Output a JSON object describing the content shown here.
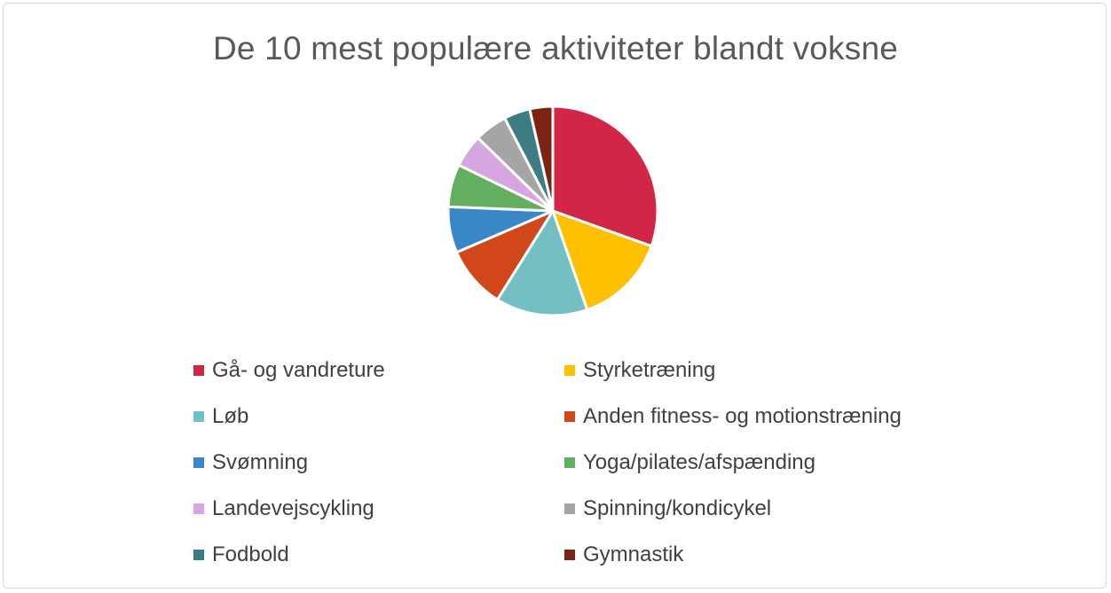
{
  "chart_data": {
    "type": "pie",
    "title": "De 10 mest populære aktiviteter blandt voksne",
    "categories": [
      "Gå- og vandreture",
      "Styrketræning",
      "Løb",
      "Anden fitness- og motionstræning",
      "Svømning",
      "Yoga/pilates/afspænding",
      "Landevejscykling",
      "Spinning/kondicykel",
      "Fodbold",
      "Gymnastik"
    ],
    "values": [
      30,
      14,
      14,
      9.5,
      7,
      6.5,
      5,
      5,
      4,
      3.5
    ],
    "colors": [
      "#d12645",
      "#ffc000",
      "#73bfc4",
      "#d24719",
      "#3a87c8",
      "#64ae5f",
      "#d5a6df",
      "#a5a5a5",
      "#3c7d84",
      "#7b2413"
    ],
    "legend_position": "bottom"
  }
}
